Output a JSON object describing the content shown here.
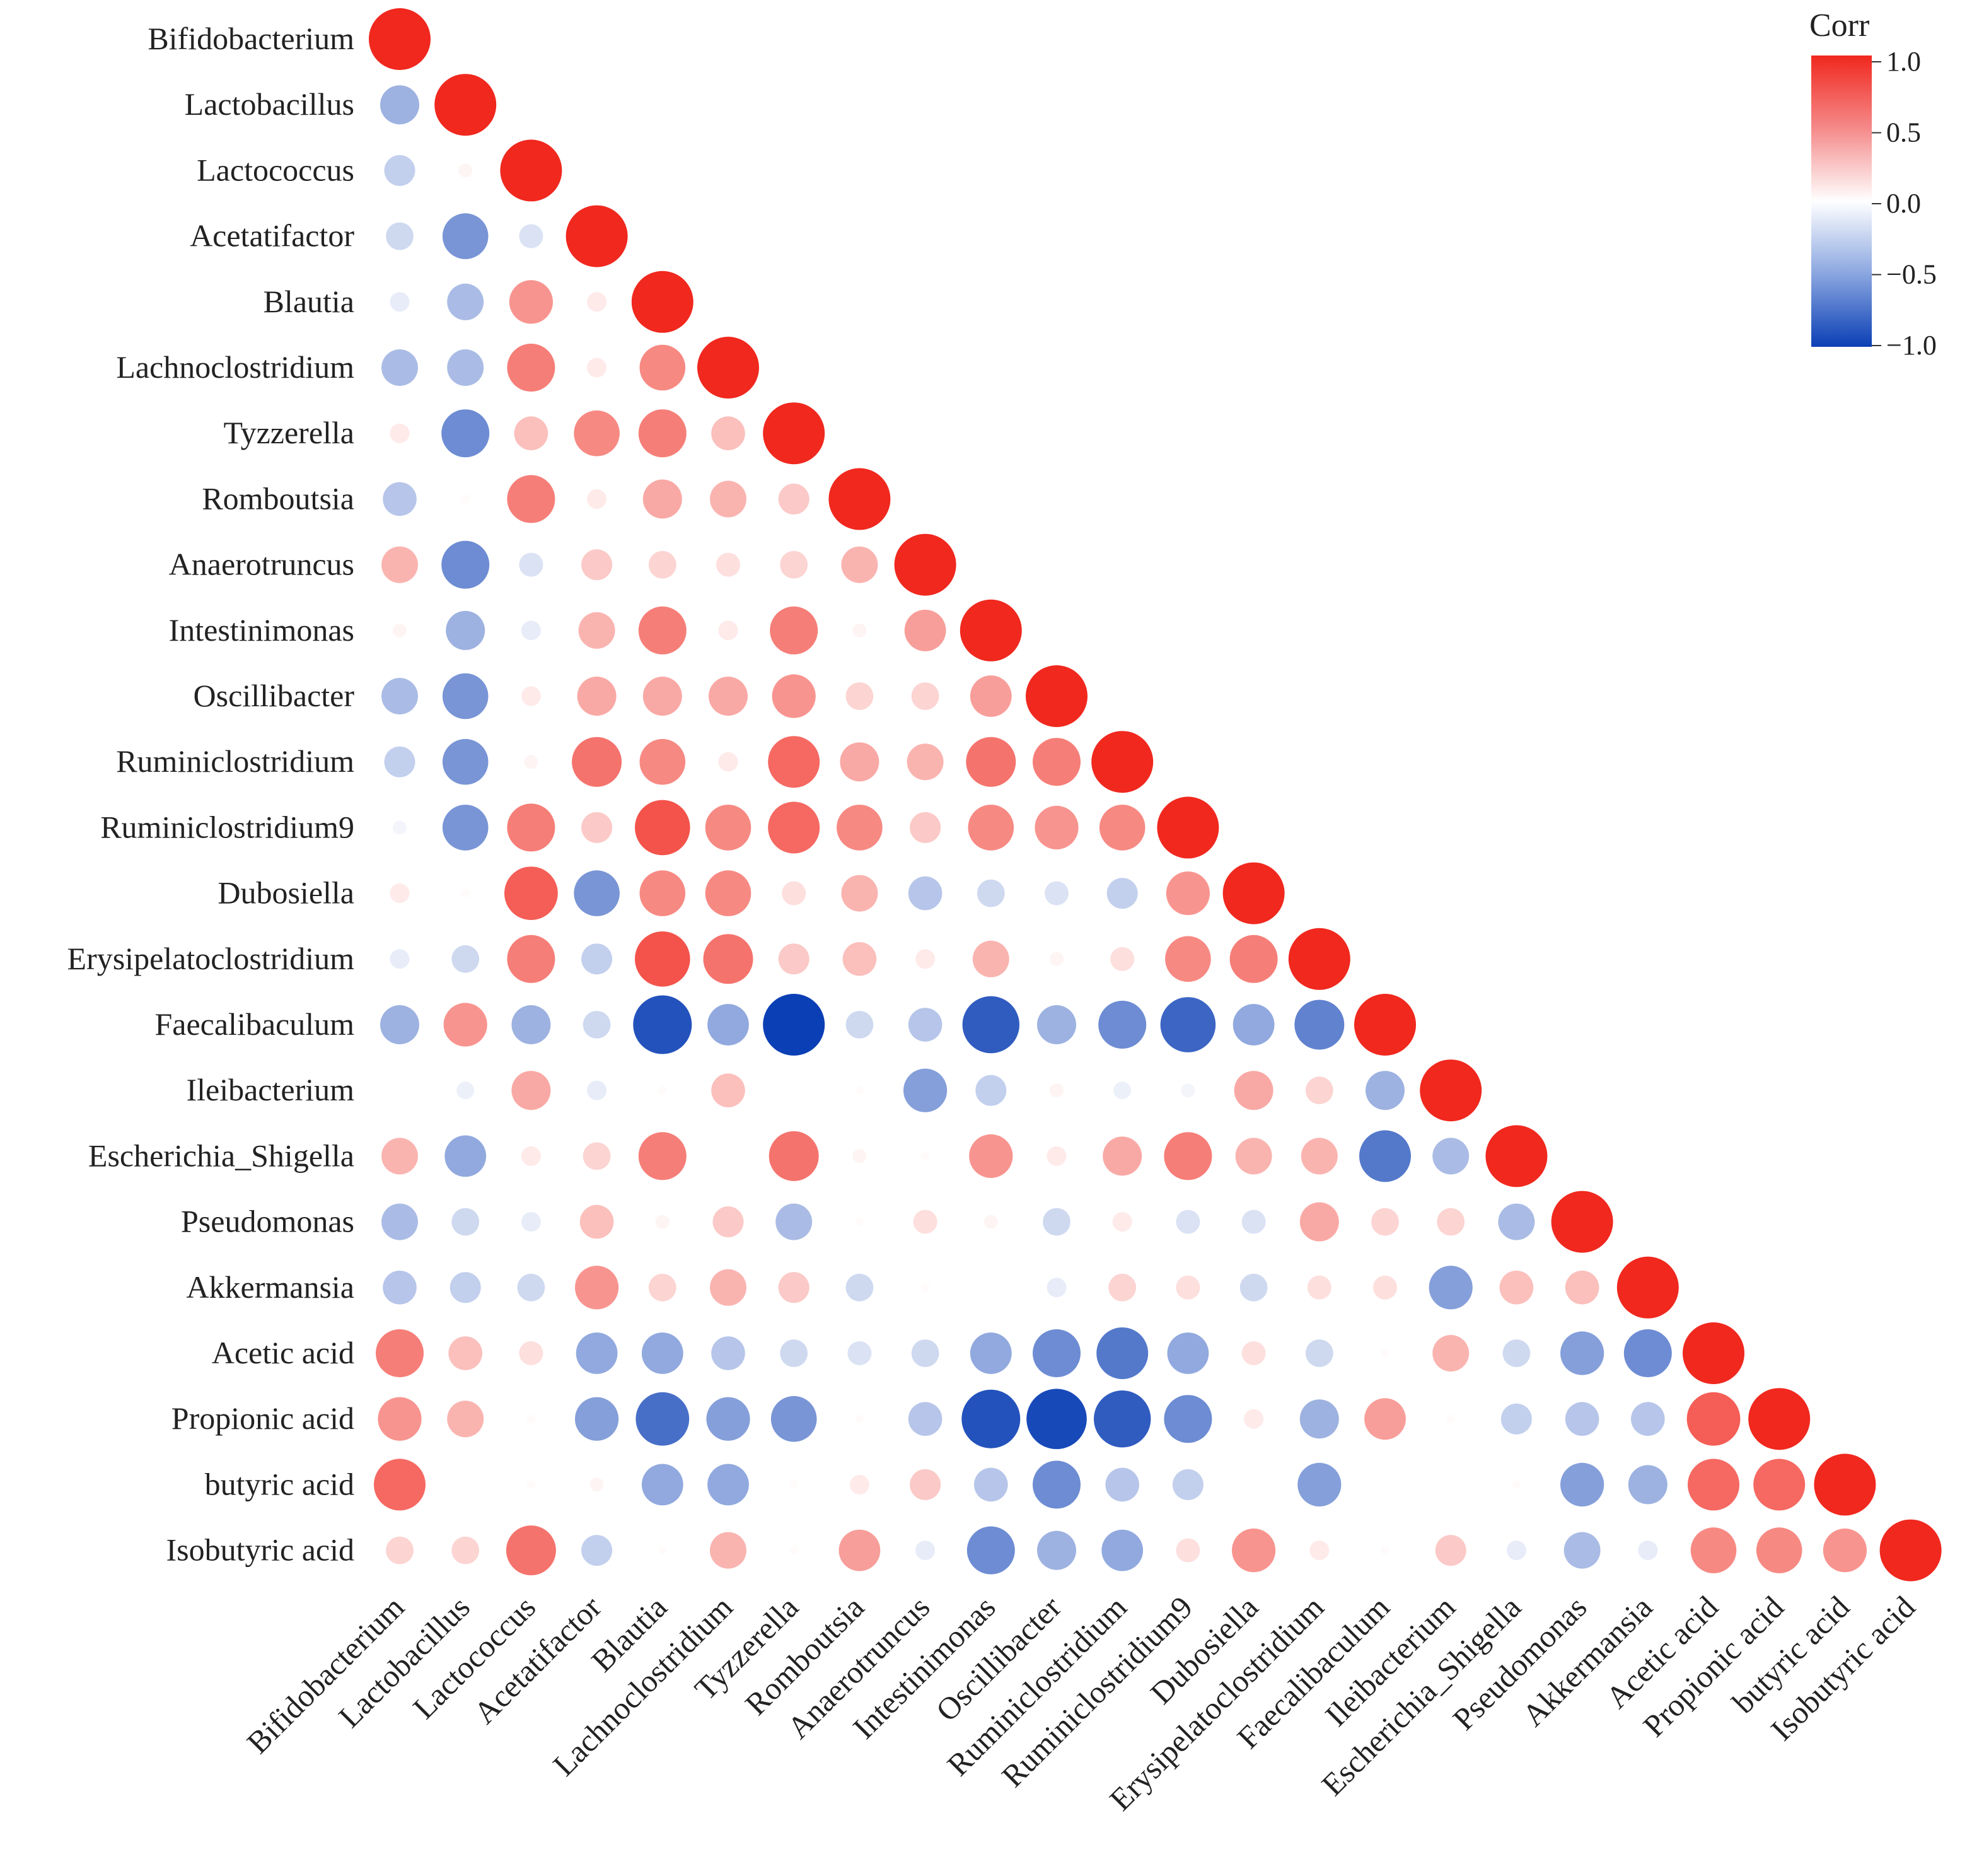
{
  "chart_data": {
    "type": "correlation-matrix",
    "title": "",
    "labels": [
      "Bifidobacterium",
      "Lactobacillus",
      "Lactococcus",
      "Acetatifactor",
      "Blautia",
      "Lachnoclostridium",
      "Tyzzerella",
      "Romboutsia",
      "Anaerotruncus",
      "Intestinimonas",
      "Oscillibacter",
      "Ruminiclostridium",
      "Ruminiclostridium9",
      "Dubosiella",
      "Erysipelatoclostridium",
      "Faecalibaculum",
      "Ileibacterium",
      "Escherichia_Shigella",
      "Pseudomonas",
      "Akkermansia",
      "Acetic acid",
      "Propionic acid",
      "butyric acid",
      "Isobutyric acid"
    ],
    "lower_triangle_values": [
      [
        1.0
      ],
      [
        -0.4,
        1.0
      ],
      [
        -0.25,
        0.05,
        1.0
      ],
      [
        -0.2,
        -0.55,
        -0.15,
        1.0
      ],
      [
        -0.1,
        -0.35,
        0.5,
        0.1,
        1.0
      ],
      [
        -0.35,
        -0.35,
        0.6,
        0.1,
        0.55,
        1.0
      ],
      [
        0.1,
        -0.6,
        0.3,
        0.55,
        0.6,
        0.3,
        1.0
      ],
      [
        -0.3,
        0.02,
        0.6,
        0.1,
        0.4,
        0.35,
        0.25,
        1.0
      ],
      [
        0.35,
        -0.6,
        -0.15,
        0.25,
        0.2,
        0.15,
        0.2,
        0.35,
        1.0
      ],
      [
        0.05,
        -0.4,
        -0.1,
        0.35,
        0.6,
        0.1,
        0.6,
        0.05,
        0.45,
        1.0
      ],
      [
        -0.35,
        -0.55,
        0.1,
        0.4,
        0.4,
        0.4,
        0.5,
        0.2,
        0.2,
        0.45,
        1.0
      ],
      [
        -0.25,
        -0.55,
        0.05,
        0.65,
        0.55,
        0.1,
        0.7,
        0.4,
        0.35,
        0.65,
        0.6,
        1.0
      ],
      [
        -0.05,
        -0.55,
        0.6,
        0.25,
        0.8,
        0.55,
        0.7,
        0.55,
        0.25,
        0.55,
        0.5,
        0.55,
        1.0
      ],
      [
        0.1,
        0.02,
        0.75,
        -0.55,
        0.55,
        0.55,
        0.15,
        0.35,
        -0.3,
        -0.2,
        -0.15,
        -0.25,
        0.5,
        1.0
      ],
      [
        -0.1,
        -0.2,
        0.6,
        -0.25,
        0.8,
        0.65,
        0.25,
        0.3,
        0.1,
        0.35,
        0.05,
        0.15,
        0.55,
        0.6,
        1.0
      ],
      [
        -0.4,
        0.5,
        -0.4,
        -0.2,
        -0.9,
        -0.45,
        -1.0,
        -0.2,
        -0.3,
        -0.85,
        -0.4,
        -0.6,
        -0.8,
        -0.45,
        -0.65,
        1.0
      ],
      [
        0.0,
        -0.08,
        0.4,
        -0.1,
        0.02,
        0.3,
        0.0,
        0.02,
        -0.5,
        -0.25,
        0.05,
        -0.08,
        -0.05,
        0.4,
        0.2,
        -0.4,
        1.0
      ],
      [
        0.35,
        -0.45,
        0.1,
        0.2,
        0.6,
        0.0,
        0.65,
        0.05,
        0.02,
        0.5,
        0.1,
        0.4,
        0.6,
        0.35,
        0.35,
        -0.7,
        -0.35,
        1.0
      ],
      [
        -0.35,
        -0.2,
        -0.1,
        0.3,
        0.05,
        0.25,
        -0.35,
        0.02,
        0.15,
        0.05,
        -0.2,
        0.1,
        -0.15,
        -0.15,
        0.4,
        0.2,
        0.2,
        -0.35,
        1.0
      ],
      [
        -0.3,
        -0.25,
        -0.2,
        0.5,
        0.2,
        0.35,
        0.25,
        -0.2,
        0.02,
        0.0,
        -0.1,
        0.2,
        0.15,
        -0.2,
        0.15,
        0.15,
        -0.5,
        0.3,
        0.3,
        1.0
      ],
      [
        0.6,
        0.3,
        0.15,
        -0.45,
        -0.45,
        -0.3,
        -0.2,
        -0.15,
        -0.2,
        -0.45,
        -0.6,
        -0.7,
        -0.45,
        0.15,
        -0.2,
        0.02,
        0.35,
        -0.2,
        -0.5,
        -0.6,
        1.0
      ],
      [
        0.5,
        0.35,
        0.02,
        -0.5,
        -0.75,
        -0.5,
        -0.55,
        0.02,
        -0.3,
        -0.9,
        -0.95,
        -0.85,
        -0.6,
        0.1,
        -0.4,
        0.45,
        0.02,
        -0.25,
        -0.3,
        -0.3,
        0.75,
        1.0
      ],
      [
        0.7,
        0.0,
        0.02,
        0.05,
        -0.45,
        -0.45,
        0.02,
        0.1,
        0.25,
        -0.3,
        -0.6,
        -0.3,
        -0.25,
        0.0,
        -0.5,
        0.0,
        0.0,
        0.02,
        -0.5,
        -0.4,
        0.7,
        0.7,
        1.0
      ],
      [
        0.2,
        0.2,
        0.65,
        -0.25,
        0.02,
        0.35,
        0.02,
        0.45,
        -0.1,
        -0.6,
        -0.4,
        -0.45,
        0.15,
        0.5,
        0.1,
        0.02,
        0.25,
        -0.1,
        -0.35,
        -0.1,
        0.55,
        0.55,
        0.5,
        1.0
      ]
    ],
    "colorscale": {
      "low": "#0b3fb5",
      "mid": "#ffffff",
      "high": "#f0281e"
    },
    "legend": {
      "title": "Corr",
      "ticks": [
        "1.0",
        "0.5",
        "0.0",
        "−0.5",
        "−1.0"
      ],
      "range": [
        -1,
        1
      ],
      "placement": "top-right"
    }
  }
}
